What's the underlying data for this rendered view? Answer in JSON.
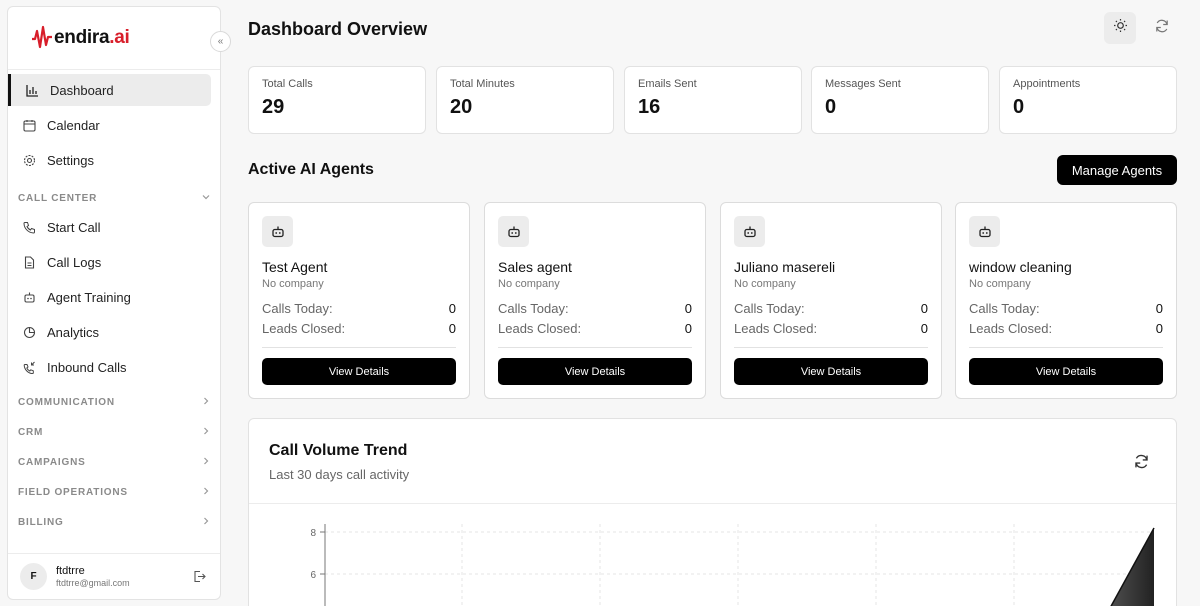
{
  "app": {
    "logo_main": "endira",
    "logo_suffix": ".ai",
    "collapse_glyph": "«"
  },
  "sidebar": {
    "primary": [
      {
        "label": "Dashboard",
        "icon": "bar-chart-icon",
        "active": true
      },
      {
        "label": "Calendar",
        "icon": "calendar-icon"
      },
      {
        "label": "Settings",
        "icon": "gear-icon"
      }
    ],
    "call_center": {
      "title": "CALL CENTER",
      "items": [
        {
          "label": "Start Call",
          "icon": "phone-icon"
        },
        {
          "label": "Call Logs",
          "icon": "document-icon"
        },
        {
          "label": "Agent Training",
          "icon": "robot-icon"
        },
        {
          "label": "Analytics",
          "icon": "pie-chart-icon"
        },
        {
          "label": "Inbound Calls",
          "icon": "phone-incoming-icon"
        }
      ]
    },
    "sections": [
      "COMMUNICATION",
      "CRM",
      "CAMPAIGNS",
      "FIELD OPERATIONS",
      "BILLING"
    ],
    "user": {
      "initial": "F",
      "name": "ftdtrre",
      "email": "ftdtrre@gmail.com"
    }
  },
  "header": {
    "title": "Dashboard Overview"
  },
  "stats": [
    {
      "label": "Total Calls",
      "value": "29"
    },
    {
      "label": "Total Minutes",
      "value": "20"
    },
    {
      "label": "Emails Sent",
      "value": "16"
    },
    {
      "label": "Messages Sent",
      "value": "0"
    },
    {
      "label": "Appointments",
      "value": "0"
    }
  ],
  "agents_section": {
    "title": "Active AI Agents",
    "manage_label": "Manage Agents",
    "calls_label": "Calls Today:",
    "leads_label": "Leads Closed:",
    "details_label": "View Details",
    "agents": [
      {
        "name": "Test Agent",
        "company": "No company",
        "calls": "0",
        "leads": "0"
      },
      {
        "name": "Sales agent",
        "company": "No company",
        "calls": "0",
        "leads": "0"
      },
      {
        "name": "Juliano masereli",
        "company": "No company",
        "calls": "0",
        "leads": "0"
      },
      {
        "name": "window cleaning",
        "company": "No company",
        "calls": "0",
        "leads": "0"
      }
    ]
  },
  "chart": {
    "title": "Call Volume Trend",
    "subtitle": "Last 30 days call activity"
  },
  "chart_data": {
    "type": "area",
    "yticks": [
      "8",
      "6"
    ],
    "ylim_visible": [
      5.2,
      8
    ],
    "grid": true,
    "note": "area rises steeply at the far right edge"
  },
  "colors": {
    "accent": "#000000",
    "brand_red": "#d81e2a",
    "active_bg": "#ececec"
  }
}
